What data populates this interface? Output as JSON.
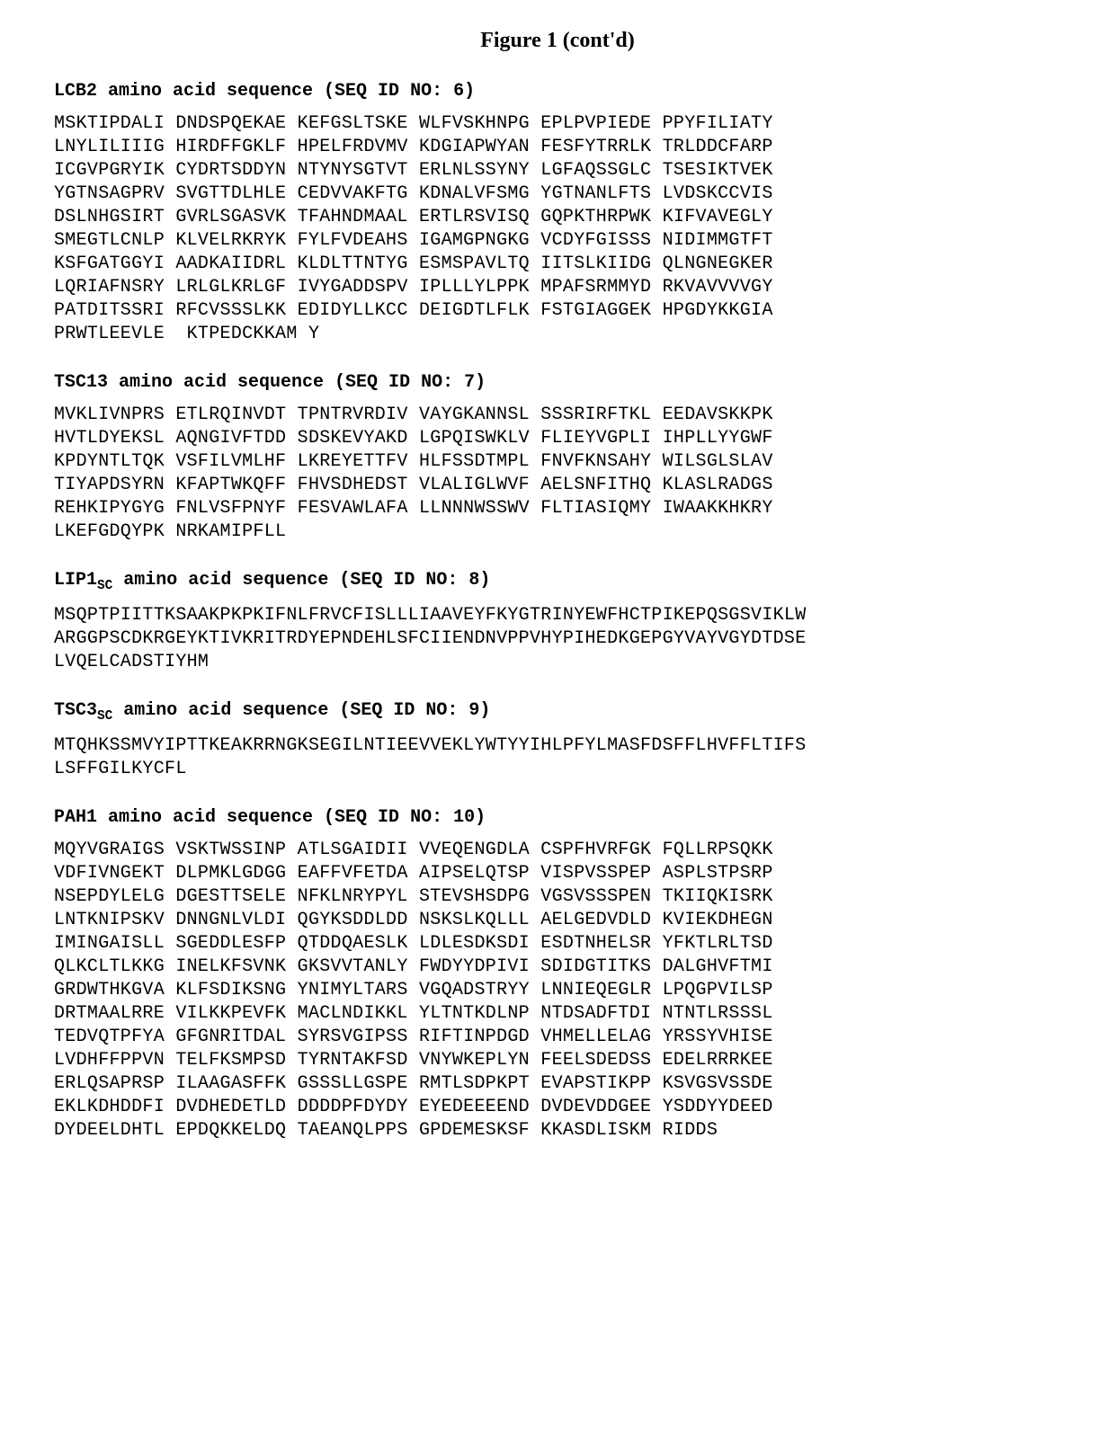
{
  "figure_title": "Figure 1 (cont'd)",
  "sections": [
    {
      "header_html": "LCB2 amino acid sequence (SEQ ID NO: 6)",
      "lines": [
        "MSKTIPDALI DNDSPQEKAE KEFGSLTSKE WLFVSKHNPG EPLPVPIEDE PPYFILIATY",
        "LNYLILIIIG HIRDFFGKLF HPELFRDVMV KDGIAPWYAN FESFYTRRLK TRLDDCFARP",
        "ICGVPGRYIK CYDRTSDDYN NTYNYSGTVT ERLNLSSYNY LGFAQSSGLC TSESIKTVEK",
        "YGTNSAGPRV SVGTTDLHLE CEDVVAKFTG KDNALVFSMG YGTNANLFTS LVDSKCCVIS",
        "DSLNHGSIRT GVRLSGASVK TFAHNDMAAL ERTLRSVISQ GQPKTHRPWK KIFVAVEGLY",
        "SMEGTLCNLP KLVELRKRYK FYLFVDEAHS IGAMGPNGKG VCDYFGISSS NIDIMMGTFT",
        "KSFGATGGYI AADKAIIDRL KLDLTTNTYG ESMSPAVLTQ IITSLKIIDG QLNGNEGKER",
        "LQRIAFNSRY LRLGLKRLGF IVYGADDSPV IPLLLYLPPK MPAFSRMMYD RKVAVVVVGY",
        "PATDITSSRI RFCVSSSLKK EDIDYLLKCC DEIGDTLFLK FSTGIAGGEK HPGDYKKGIA",
        "PRWTLEEVLE  KTPEDCKKAM Y"
      ]
    },
    {
      "header_html": "TSC13 amino acid sequence (SEQ ID NO: 7)",
      "lines": [
        "MVKLIVNPRS ETLRQINVDT TPNTRVRDIV VAYGKANNSL SSSRIRFTKL EEDAVSKKPK",
        "HVTLDYEKSL AQNGIVFTDD SDSKEVYAKD LGPQISWKLV FLIEYVGPLI IHPLLYYGWF",
        "KPDYNTLTQK VSFILVMLHF LKREYETTFV HLFSSDTMPL FNVFKNSAHY WILSGLSLAV",
        "TIYAPDSYRN KFAPTWKQFF FHVSDHEDST VLALIGLWVF AELSNFITHQ KLASLRADGS",
        "REHKIPYGYG FNLVSFPNYF FESVAWLAFA LLNNNWSSWV FLTIASIQMY IWAAKKHKRY",
        "LKEFGDQYPK NRKAMIPFLL"
      ]
    },
    {
      "header_html": "LIP1<sub>SC</sub> amino acid sequence (SEQ ID NO: 8)",
      "lines": [
        "MSQPTPIITTKSAAKPKPKIFNLFRVCFISLLLIAAVEYFKYGTRINYEWFHCTPIKEPQSGSVIKLW",
        "ARGGPSCDKRGEYKTIVKRITRDYEPNDEHLSFCIIENDNVPPVHYPIHEDKGEPGYVAYVGYDTDSE",
        "LVQELCADSTIYHM"
      ]
    },
    {
      "header_html": "TSC3<sub>SC</sub> amino acid sequence (SEQ ID NO: 9)",
      "lines": [
        "MTQHKSSMVYIPTTKEAKRRNGKSEGILNTIEEVVEKLYWTYYIHLPFYLMASFDSFFLHVFFLTIFS",
        "LSFFGILKYCFL"
      ]
    },
    {
      "header_html": "PAH1 amino acid sequence (SEQ ID NO: 10)",
      "lines": [
        "MQYVGRAIGS VSKTWSSINP ATLSGAIDII VVEQENGDLA CSPFHVRFGK FQLLRPSQKK",
        "VDFIVNGEKT DLPMKLGDGG EAFFVFETDA AIPSELQTSP VISPVSSPEP ASPLSTPSRP",
        "NSEPDYLELG DGESTTSELE NFKLNRYPYL STEVSHSDPG VGSVSSSPEN TKIIQKISRK",
        "LNTKNIPSKV DNNGNLVLDI QGYKSDDLDD NSKSLKQLLL AELGEDVDLD KVIEKDHEGN",
        "IMINGAISLL SGEDDLESFP QTDDQAESLK LDLESDKSDI ESDTNHELSR YFKTLRLTSD",
        "QLKCLTLKKG INELKFSVNK GKSVVTANLY FWDYYDPIVI SDIDGTITKS DALGHVFTMI",
        "GRDWTHKGVA KLFSDIKSNG YNIMYLTARS VGQADSTRYY LNNIEQEGLR LPQGPVILSP",
        "DRTMAALRRE VILKKPEVFK MACLNDIKKL YLTNTKDLNP NTDSADFTDI NTNTLRSSSL",
        "TEDVQTPFYA GFGNRITDAL SYRSVGIPSS RIFTINPDGD VHMELLELAG YRSSYVHISE",
        "LVDHFFPPVN TELFKSMPSD TYRNTAKFSD VNYWKEPLYN FEELSDEDSS EDELRRRKEE",
        "ERLQSAPRSP ILAAGASFFK GSSSLLGSPE RMTLSDPKPT EVAPSTIKPP KSVGSVSSDE",
        "EKLKDHDDFI DVDHEDETLD DDDDPFDYDY EYEDEEEEND DVDEVDDGEE YSDDYYDEED",
        "DYDEELDHTL EPDQKKELDQ TAEANQLPPS GPDEMESKSF KKASDLISKM RIDDS"
      ]
    }
  ]
}
